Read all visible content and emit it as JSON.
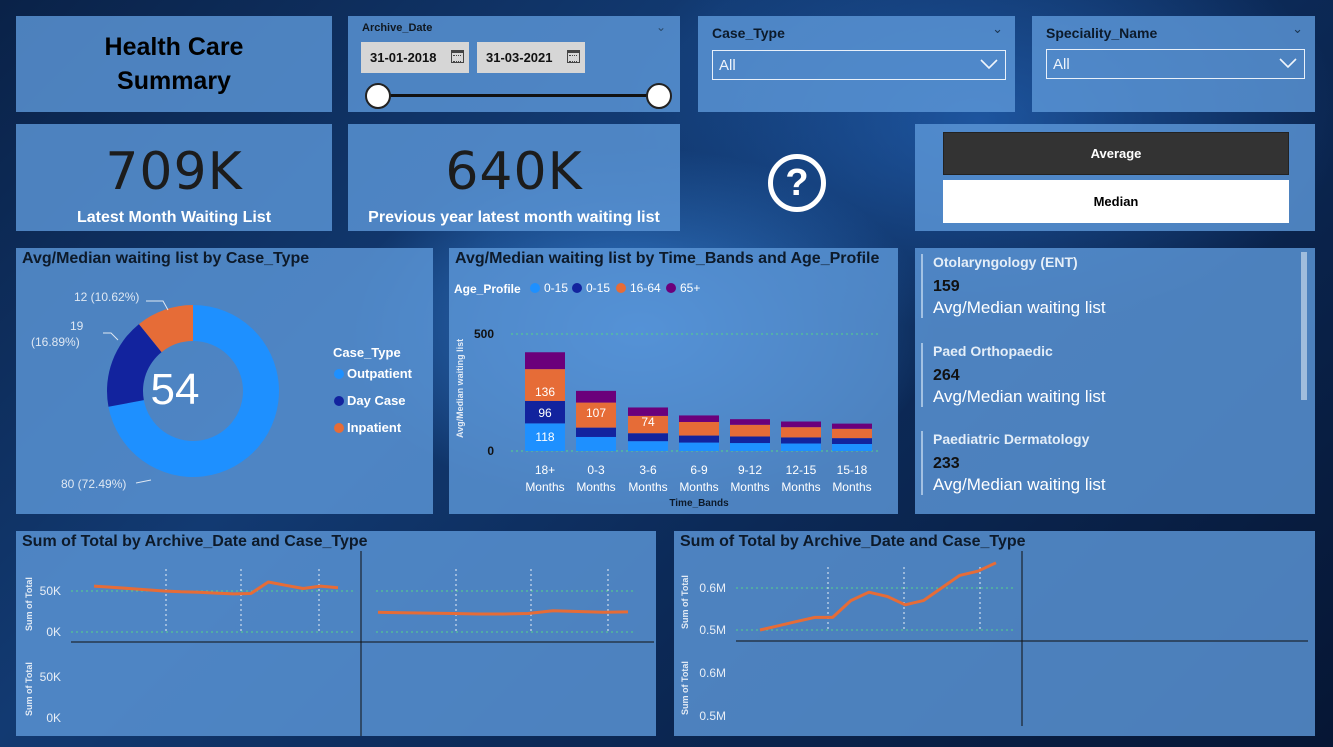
{
  "title": {
    "line1": "Health Care",
    "line2": "Summary"
  },
  "date_slicer": {
    "label": "Archive_Date",
    "start": "31-01-2018",
    "end": "31-03-2021"
  },
  "case_type_slicer": {
    "label": "Case_Type",
    "value": "All"
  },
  "speciality_slicer": {
    "label": "Speciality_Name",
    "value": "All"
  },
  "kpis": [
    {
      "value": "709K",
      "label": "Latest Month Waiting List"
    },
    {
      "value": "640K",
      "label": "Previous year latest month waiting list"
    }
  ],
  "help_icon": "question-circle-icon",
  "toggle": {
    "average": "Average",
    "median": "Median"
  },
  "colors": {
    "outpatient": "#1e90ff",
    "day_case": "#12239e",
    "inpatient": "#e66c37",
    "age_65_plus": "#6b007b"
  },
  "donut": {
    "title": "Avg/Median waiting list by Case_Type",
    "center": "54",
    "legend_title": "Case_Type",
    "legend": [
      "Outpatient",
      "Day Case",
      "Inpatient"
    ],
    "labels": {
      "outpatient": "80 (72.49%)",
      "day_case_value": "19",
      "day_case_pct": "(16.89%)",
      "inpatient": "12 (10.62%)"
    }
  },
  "bar": {
    "title": "Avg/Median waiting list by Time_Bands and Age_Profile",
    "legend_title": "Age_Profile",
    "legend": [
      "0-15",
      "0-15",
      "16-64",
      "65+"
    ],
    "ylabel": "Avg/Median waiting list",
    "xlabel": "Time_Bands",
    "yticks": [
      "500",
      "0"
    ],
    "labels_18": {
      "a": "118",
      "b": "96",
      "c": "136"
    },
    "label_03": "107",
    "label_36": "74",
    "cat_lines": [
      [
        "18+",
        "Months"
      ],
      [
        "0-3",
        "Months"
      ],
      [
        "3-6",
        "Months"
      ],
      [
        "6-9",
        "Months"
      ],
      [
        "9-12",
        "Months"
      ],
      [
        "12-15",
        "Months"
      ],
      [
        "15-18",
        "Months"
      ]
    ]
  },
  "specialities": [
    {
      "name": "Otolaryngology (ENT)",
      "value": "159",
      "label": "Avg/Median waiting list"
    },
    {
      "name": "Paed Orthopaedic",
      "value": "264",
      "label": "Avg/Median waiting list"
    },
    {
      "name": "Paediatric Dermatology",
      "value": "233",
      "label": "Avg/Median waiting list"
    }
  ],
  "line_left": {
    "title": "Sum of Total by Archive_Date and Case_Type",
    "ylabel": "Sum of Total",
    "yticks_top": [
      "50K",
      "0K"
    ],
    "yticks_bottom": [
      "50K",
      "0K"
    ]
  },
  "line_right": {
    "title": "Sum of Total by Archive_Date and Case_Type",
    "ylabel": "Sum of Total",
    "yticks_top": [
      "0.6M",
      "0.5M"
    ],
    "yticks_bottom": [
      "0.6M",
      "0.5M"
    ]
  },
  "chart_data": [
    {
      "type": "pie",
      "title": "Avg/Median waiting list by Case_Type",
      "categories": [
        "Outpatient",
        "Day Case",
        "Inpatient"
      ],
      "values": [
        80,
        19,
        12
      ],
      "percentages": [
        72.49,
        16.89,
        10.62
      ],
      "center_value": 54,
      "legend_title": "Case_Type",
      "legend_position": "right"
    },
    {
      "type": "bar",
      "stacked": true,
      "title": "Avg/Median waiting list by Time_Bands and Age_Profile",
      "categories": [
        "18+ Months",
        "0-3 Months",
        "3-6 Months",
        "6-9 Months",
        "9-12 Months",
        "12-15 Months",
        "15-18 Months"
      ],
      "series": [
        {
          "name": "0-15",
          "values": [
            118,
            60,
            42,
            36,
            34,
            32,
            30
          ]
        },
        {
          "name": "0-15",
          "values": [
            96,
            40,
            34,
            30,
            28,
            26,
            25
          ]
        },
        {
          "name": "16-64",
          "values": [
            136,
            107,
            74,
            58,
            50,
            44,
            40
          ]
        },
        {
          "name": "65+",
          "values": [
            72,
            50,
            36,
            28,
            24,
            24,
            22
          ]
        }
      ],
      "xlabel": "Time_Bands",
      "ylabel": "Avg/Median waiting list",
      "ylim": [
        0,
        500
      ],
      "legend_position": "top"
    },
    {
      "type": "line",
      "title": "Sum of Total by Archive_Date and Case_Type",
      "panel": "top-left",
      "ylabel": "Sum of Total",
      "series": [
        {
          "values": [
            56000,
            54500,
            53000,
            51500,
            50000,
            49000,
            48500,
            47500,
            46500,
            47000,
            61000,
            57000,
            53000,
            56000,
            54000
          ]
        }
      ]
    },
    {
      "type": "line",
      "title": "Sum of Total by Archive_Date and Case_Type",
      "panel": "top-center",
      "ylabel": "Sum of Total",
      "series": [
        {
          "values": [
            24000,
            23500,
            23000,
            22500,
            22000,
            22000,
            22500,
            26000,
            25000,
            24000,
            24500
          ]
        }
      ]
    },
    {
      "type": "line",
      "title": "Sum of Total by Archive_Date and Case_Type",
      "panel": "right",
      "ylabel": "Sum of Total",
      "series": [
        {
          "values": [
            0.5,
            0.51,
            0.52,
            0.53,
            0.53,
            0.57,
            0.59,
            0.58,
            0.56,
            0.57,
            0.6,
            0.63,
            0.64,
            0.66
          ]
        }
      ]
    }
  ]
}
